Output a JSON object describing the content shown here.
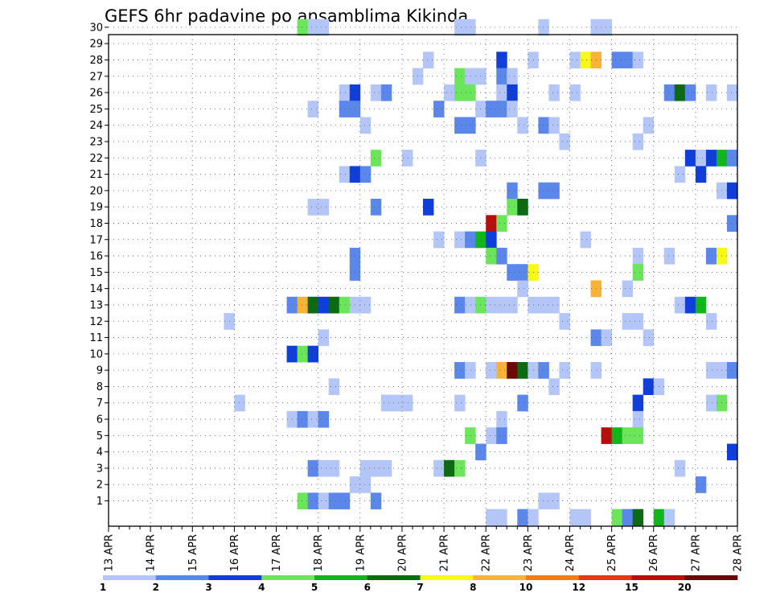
{
  "chart_data": {
    "type": "heatmap",
    "title": "GEFS 6hr padavine po ansamblima Kikinda",
    "ylim": [
      0,
      30
    ],
    "y_ticks": [
      1,
      2,
      3,
      4,
      5,
      6,
      7,
      8,
      9,
      10,
      11,
      12,
      13,
      14,
      15,
      16,
      17,
      18,
      19,
      20,
      21,
      22,
      23,
      24,
      25,
      26,
      27,
      28,
      29,
      30
    ],
    "x_ticks": [
      "13 APR",
      "14 APR",
      "15 APR",
      "16 APR",
      "17 APR",
      "18 APR",
      "19 APR",
      "20 APR",
      "21 APR",
      "22 APR",
      "23 APR",
      "24 APR",
      "25 APR",
      "26 APR",
      "27 APR",
      "28 APR"
    ],
    "x_start": "13 APR 00Z",
    "time_step": "6hr",
    "grid": true,
    "legend_position": "bottom",
    "color_scale": {
      "boundaries": [
        "1",
        "2",
        "3",
        "4",
        "5",
        "6",
        "7",
        "8",
        "10",
        "12",
        "15",
        "20"
      ],
      "colors": [
        "#b4c6f7",
        "#5b86ea",
        "#0f3fd8",
        "#6be55a",
        "#12b51a",
        "#0b6a12",
        "#f8f81a",
        "#f8b23a",
        "#f57d10",
        "#e53a10",
        "#b80d0d",
        "#6b0808"
      ]
    },
    "cells": [
      {
        "member": 30,
        "step": 19,
        "level": 4
      },
      {
        "member": 30,
        "step": 20,
        "level": 1
      },
      {
        "member": 30,
        "step": 21,
        "level": 1
      },
      {
        "member": 30,
        "step": 34,
        "level": 1
      },
      {
        "member": 30,
        "step": 35,
        "level": 1
      },
      {
        "member": 30,
        "step": 42,
        "level": 1
      },
      {
        "member": 30,
        "step": 47,
        "level": 1
      },
      {
        "member": 30,
        "step": 48,
        "level": 1
      },
      {
        "member": 28,
        "step": 31,
        "level": 1
      },
      {
        "member": 28,
        "step": 38,
        "level": 3
      },
      {
        "member": 28,
        "step": 41,
        "level": 1
      },
      {
        "member": 28,
        "step": 45,
        "level": 1
      },
      {
        "member": 28,
        "step": 46,
        "level": 7
      },
      {
        "member": 28,
        "step": 47,
        "level": 8
      },
      {
        "member": 28,
        "step": 49,
        "level": 2
      },
      {
        "member": 28,
        "step": 50,
        "level": 2
      },
      {
        "member": 28,
        "step": 51,
        "level": 1
      },
      {
        "member": 27,
        "step": 30,
        "level": 1
      },
      {
        "member": 27,
        "step": 34,
        "level": 4
      },
      {
        "member": 27,
        "step": 35,
        "level": 1
      },
      {
        "member": 27,
        "step": 36,
        "level": 1
      },
      {
        "member": 27,
        "step": 38,
        "level": 2
      },
      {
        "member": 27,
        "step": 39,
        "level": 1
      },
      {
        "member": 26,
        "step": 23,
        "level": 1
      },
      {
        "member": 26,
        "step": 24,
        "level": 3
      },
      {
        "member": 26,
        "step": 26,
        "level": 1
      },
      {
        "member": 26,
        "step": 27,
        "level": 2
      },
      {
        "member": 26,
        "step": 33,
        "level": 1
      },
      {
        "member": 26,
        "step": 34,
        "level": 4
      },
      {
        "member": 26,
        "step": 35,
        "level": 4
      },
      {
        "member": 26,
        "step": 38,
        "level": 1
      },
      {
        "member": 26,
        "step": 39,
        "level": 3
      },
      {
        "member": 26,
        "step": 43,
        "level": 1
      },
      {
        "member": 26,
        "step": 45,
        "level": 1
      },
      {
        "member": 26,
        "step": 54,
        "level": 2
      },
      {
        "member": 26,
        "step": 55,
        "level": 6
      },
      {
        "member": 26,
        "step": 56,
        "level": 2
      },
      {
        "member": 26,
        "step": 58,
        "level": 1
      },
      {
        "member": 26,
        "step": 60,
        "level": 1
      },
      {
        "member": 25,
        "step": 20,
        "level": 1
      },
      {
        "member": 25,
        "step": 23,
        "level": 2
      },
      {
        "member": 25,
        "step": 24,
        "level": 2
      },
      {
        "member": 25,
        "step": 32,
        "level": 2
      },
      {
        "member": 25,
        "step": 36,
        "level": 1
      },
      {
        "member": 25,
        "step": 37,
        "level": 2
      },
      {
        "member": 25,
        "step": 38,
        "level": 2
      },
      {
        "member": 25,
        "step": 39,
        "level": 1
      },
      {
        "member": 24,
        "step": 25,
        "level": 1
      },
      {
        "member": 24,
        "step": 34,
        "level": 2
      },
      {
        "member": 24,
        "step": 35,
        "level": 2
      },
      {
        "member": 24,
        "step": 40,
        "level": 1
      },
      {
        "member": 24,
        "step": 42,
        "level": 2
      },
      {
        "member": 24,
        "step": 43,
        "level": 1
      },
      {
        "member": 24,
        "step": 52,
        "level": 1
      },
      {
        "member": 23,
        "step": 44,
        "level": 1
      },
      {
        "member": 23,
        "step": 51,
        "level": 1
      },
      {
        "member": 22,
        "step": 26,
        "level": 4
      },
      {
        "member": 22,
        "step": 29,
        "level": 1
      },
      {
        "member": 22,
        "step": 36,
        "level": 1
      },
      {
        "member": 22,
        "step": 56,
        "level": 3
      },
      {
        "member": 22,
        "step": 57,
        "level": 1
      },
      {
        "member": 22,
        "step": 58,
        "level": 3
      },
      {
        "member": 22,
        "step": 59,
        "level": 5
      },
      {
        "member": 22,
        "step": 60,
        "level": 2
      },
      {
        "member": 21,
        "step": 23,
        "level": 1
      },
      {
        "member": 21,
        "step": 24,
        "level": 3
      },
      {
        "member": 21,
        "step": 25,
        "level": 2
      },
      {
        "member": 21,
        "step": 55,
        "level": 1
      },
      {
        "member": 21,
        "step": 57,
        "level": 3
      },
      {
        "member": 20,
        "step": 39,
        "level": 2
      },
      {
        "member": 20,
        "step": 42,
        "level": 2
      },
      {
        "member": 20,
        "step": 43,
        "level": 2
      },
      {
        "member": 20,
        "step": 59,
        "level": 1
      },
      {
        "member": 20,
        "step": 60,
        "level": 3
      },
      {
        "member": 19,
        "step": 20,
        "level": 1
      },
      {
        "member": 19,
        "step": 21,
        "level": 1
      },
      {
        "member": 19,
        "step": 26,
        "level": 2
      },
      {
        "member": 19,
        "step": 31,
        "level": 3
      },
      {
        "member": 19,
        "step": 39,
        "level": 4
      },
      {
        "member": 19,
        "step": 40,
        "level": 6
      },
      {
        "member": 18,
        "step": 37,
        "level": 11
      },
      {
        "member": 18,
        "step": 38,
        "level": 4
      },
      {
        "member": 18,
        "step": 60,
        "level": 2
      },
      {
        "member": 17,
        "step": 32,
        "level": 1
      },
      {
        "member": 17,
        "step": 34,
        "level": 1
      },
      {
        "member": 17,
        "step": 35,
        "level": 2
      },
      {
        "member": 17,
        "step": 36,
        "level": 5
      },
      {
        "member": 17,
        "step": 37,
        "level": 3
      },
      {
        "member": 17,
        "step": 46,
        "level": 1
      },
      {
        "member": 16,
        "step": 24,
        "level": 2
      },
      {
        "member": 16,
        "step": 37,
        "level": 4
      },
      {
        "member": 16,
        "step": 38,
        "level": 2
      },
      {
        "member": 16,
        "step": 51,
        "level": 1
      },
      {
        "member": 16,
        "step": 54,
        "level": 1
      },
      {
        "member": 16,
        "step": 58,
        "level": 2
      },
      {
        "member": 16,
        "step": 59,
        "level": 7
      },
      {
        "member": 15,
        "step": 24,
        "level": 2
      },
      {
        "member": 15,
        "step": 39,
        "level": 2
      },
      {
        "member": 15,
        "step": 40,
        "level": 2
      },
      {
        "member": 15,
        "step": 41,
        "level": 7
      },
      {
        "member": 15,
        "step": 51,
        "level": 4
      },
      {
        "member": 14,
        "step": 40,
        "level": 1
      },
      {
        "member": 14,
        "step": 47,
        "level": 8
      },
      {
        "member": 14,
        "step": 50,
        "level": 1
      },
      {
        "member": 13,
        "step": 18,
        "level": 2
      },
      {
        "member": 13,
        "step": 19,
        "level": 8
      },
      {
        "member": 13,
        "step": 20,
        "level": 6
      },
      {
        "member": 13,
        "step": 21,
        "level": 3
      },
      {
        "member": 13,
        "step": 22,
        "level": 6
      },
      {
        "member": 13,
        "step": 23,
        "level": 4
      },
      {
        "member": 13,
        "step": 24,
        "level": 1
      },
      {
        "member": 13,
        "step": 25,
        "level": 1
      },
      {
        "member": 13,
        "step": 34,
        "level": 2
      },
      {
        "member": 13,
        "step": 35,
        "level": 1
      },
      {
        "member": 13,
        "step": 36,
        "level": 4
      },
      {
        "member": 13,
        "step": 37,
        "level": 1
      },
      {
        "member": 13,
        "step": 38,
        "level": 1
      },
      {
        "member": 13,
        "step": 39,
        "level": 1
      },
      {
        "member": 13,
        "step": 41,
        "level": 1
      },
      {
        "member": 13,
        "step": 42,
        "level": 1
      },
      {
        "member": 13,
        "step": 43,
        "level": 1
      },
      {
        "member": 13,
        "step": 55,
        "level": 1
      },
      {
        "member": 13,
        "step": 56,
        "level": 3
      },
      {
        "member": 13,
        "step": 57,
        "level": 5
      },
      {
        "member": 12,
        "step": 12,
        "level": 1
      },
      {
        "member": 12,
        "step": 44,
        "level": 1
      },
      {
        "member": 12,
        "step": 50,
        "level": 1
      },
      {
        "member": 12,
        "step": 51,
        "level": 1
      },
      {
        "member": 12,
        "step": 58,
        "level": 1
      },
      {
        "member": 11,
        "step": 21,
        "level": 1
      },
      {
        "member": 11,
        "step": 47,
        "level": 2
      },
      {
        "member": 11,
        "step": 48,
        "level": 1
      },
      {
        "member": 11,
        "step": 52,
        "level": 1
      },
      {
        "member": 10,
        "step": 18,
        "level": 3
      },
      {
        "member": 10,
        "step": 19,
        "level": 4
      },
      {
        "member": 10,
        "step": 20,
        "level": 3
      },
      {
        "member": 9,
        "step": 34,
        "level": 2
      },
      {
        "member": 9,
        "step": 35,
        "level": 1
      },
      {
        "member": 9,
        "step": 37,
        "level": 1
      },
      {
        "member": 9,
        "step": 38,
        "level": 8
      },
      {
        "member": 9,
        "step": 39,
        "level": 12
      },
      {
        "member": 9,
        "step": 40,
        "level": 6
      },
      {
        "member": 9,
        "step": 41,
        "level": 1
      },
      {
        "member": 9,
        "step": 42,
        "level": 2
      },
      {
        "member": 9,
        "step": 44,
        "level": 1
      },
      {
        "member": 9,
        "step": 47,
        "level": 1
      },
      {
        "member": 9,
        "step": 58,
        "level": 1
      },
      {
        "member": 9,
        "step": 59,
        "level": 1
      },
      {
        "member": 9,
        "step": 60,
        "level": 2
      },
      {
        "member": 8,
        "step": 22,
        "level": 1
      },
      {
        "member": 8,
        "step": 43,
        "level": 1
      },
      {
        "member": 8,
        "step": 52,
        "level": 3
      },
      {
        "member": 8,
        "step": 53,
        "level": 1
      },
      {
        "member": 7,
        "step": 13,
        "level": 1
      },
      {
        "member": 7,
        "step": 27,
        "level": 1
      },
      {
        "member": 7,
        "step": 28,
        "level": 1
      },
      {
        "member": 7,
        "step": 29,
        "level": 1
      },
      {
        "member": 7,
        "step": 34,
        "level": 1
      },
      {
        "member": 7,
        "step": 40,
        "level": 2
      },
      {
        "member": 7,
        "step": 51,
        "level": 3
      },
      {
        "member": 7,
        "step": 58,
        "level": 1
      },
      {
        "member": 7,
        "step": 59,
        "level": 4
      },
      {
        "member": 6,
        "step": 18,
        "level": 1
      },
      {
        "member": 6,
        "step": 19,
        "level": 2
      },
      {
        "member": 6,
        "step": 20,
        "level": 1
      },
      {
        "member": 6,
        "step": 21,
        "level": 2
      },
      {
        "member": 6,
        "step": 38,
        "level": 1
      },
      {
        "member": 6,
        "step": 51,
        "level": 1
      },
      {
        "member": 5,
        "step": 35,
        "level": 4
      },
      {
        "member": 5,
        "step": 37,
        "level": 1
      },
      {
        "member": 5,
        "step": 38,
        "level": 2
      },
      {
        "member": 5,
        "step": 48,
        "level": 11
      },
      {
        "member": 5,
        "step": 49,
        "level": 5
      },
      {
        "member": 5,
        "step": 50,
        "level": 4
      },
      {
        "member": 5,
        "step": 51,
        "level": 4
      },
      {
        "member": 4,
        "step": 36,
        "level": 2
      },
      {
        "member": 4,
        "step": 60,
        "level": 3
      },
      {
        "member": 3,
        "step": 20,
        "level": 2
      },
      {
        "member": 3,
        "step": 21,
        "level": 1
      },
      {
        "member": 3,
        "step": 22,
        "level": 1
      },
      {
        "member": 3,
        "step": 25,
        "level": 1
      },
      {
        "member": 3,
        "step": 26,
        "level": 1
      },
      {
        "member": 3,
        "step": 27,
        "level": 1
      },
      {
        "member": 3,
        "step": 32,
        "level": 1
      },
      {
        "member": 3,
        "step": 33,
        "level": 6
      },
      {
        "member": 3,
        "step": 34,
        "level": 4
      },
      {
        "member": 3,
        "step": 55,
        "level": 1
      },
      {
        "member": 2,
        "step": 24,
        "level": 1
      },
      {
        "member": 2,
        "step": 25,
        "level": 1
      },
      {
        "member": 2,
        "step": 57,
        "level": 2
      },
      {
        "member": 1,
        "step": 19,
        "level": 4
      },
      {
        "member": 1,
        "step": 20,
        "level": 2
      },
      {
        "member": 1,
        "step": 21,
        "level": 1
      },
      {
        "member": 1,
        "step": 22,
        "level": 2
      },
      {
        "member": 1,
        "step": 23,
        "level": 2
      },
      {
        "member": 1,
        "step": 26,
        "level": 2
      },
      {
        "member": 1,
        "step": 42,
        "level": 1
      },
      {
        "member": 1,
        "step": 43,
        "level": 1
      },
      {
        "member": 0,
        "step": 37,
        "level": 1
      },
      {
        "member": 0,
        "step": 38,
        "level": 1
      },
      {
        "member": 0,
        "step": 40,
        "level": 2
      },
      {
        "member": 0,
        "step": 41,
        "level": 1
      },
      {
        "member": 0,
        "step": 45,
        "level": 1
      },
      {
        "member": 0,
        "step": 46,
        "level": 1
      },
      {
        "member": 0,
        "step": 49,
        "level": 4
      },
      {
        "member": 0,
        "step": 50,
        "level": 2
      },
      {
        "member": 0,
        "step": 51,
        "level": 6
      },
      {
        "member": 0,
        "step": 53,
        "level": 5
      },
      {
        "member": 0,
        "step": 54,
        "level": 1
      }
    ]
  }
}
